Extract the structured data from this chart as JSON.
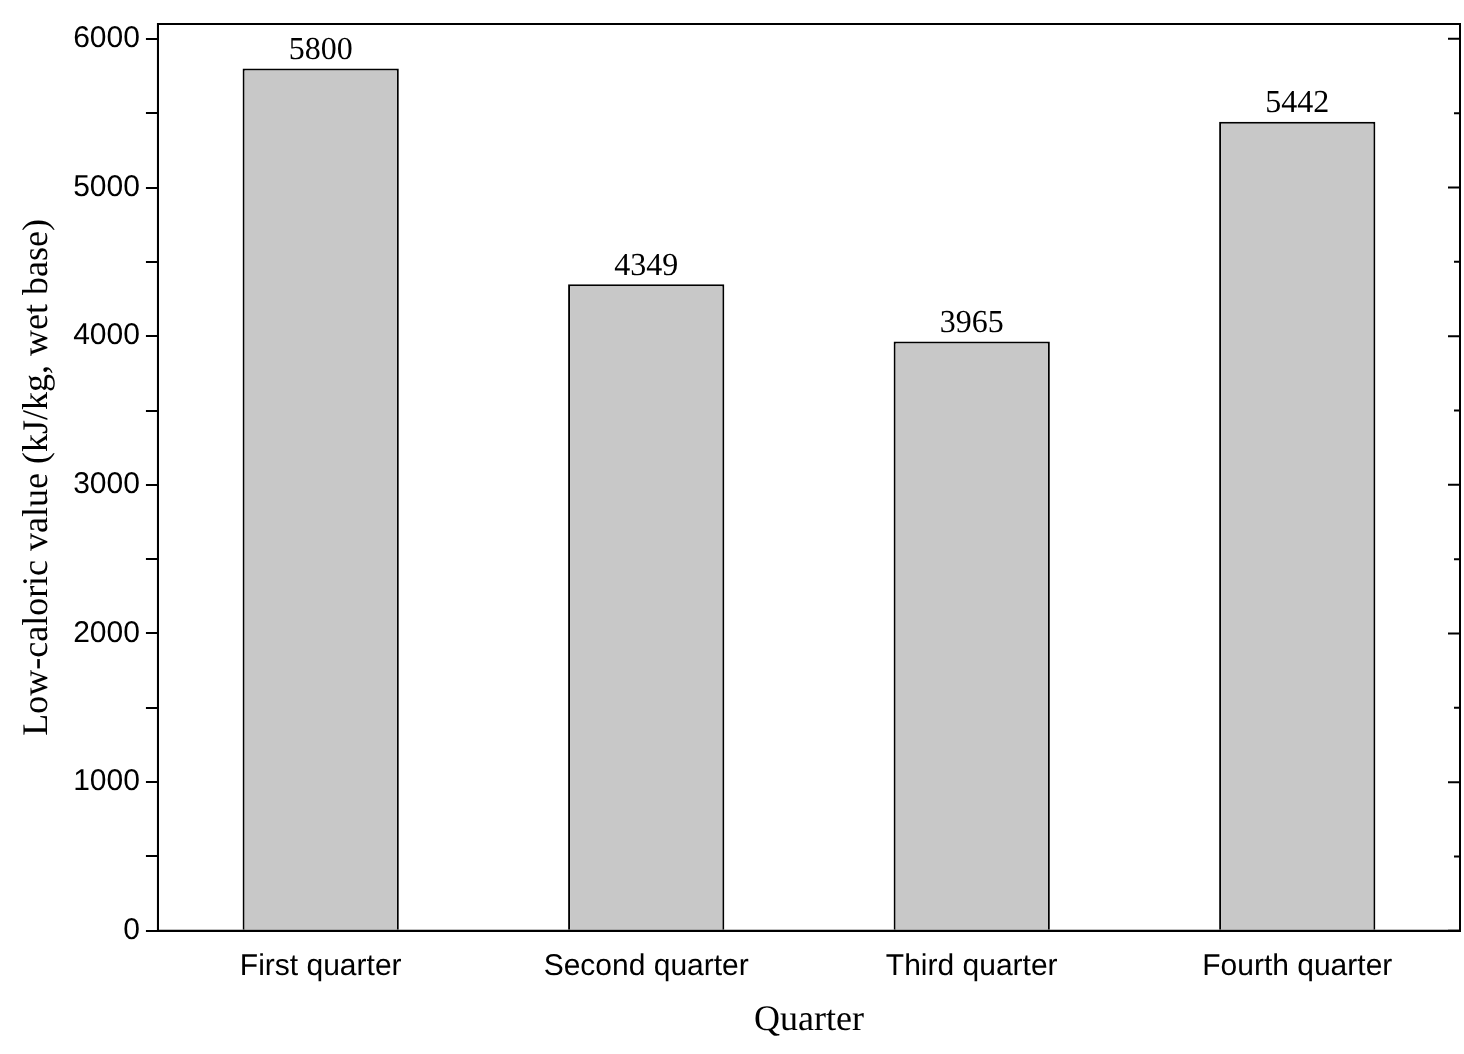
{
  "chart_data": {
    "type": "bar",
    "xlabel": "Quarter",
    "ylabel": "Low-caloric value (kJ/kg, wet base)",
    "categories": [
      "First quarter",
      "Second quarter",
      "Third quarter",
      "Fourth quarter"
    ],
    "values": [
      5800,
      4349,
      3965,
      5442
    ],
    "color": "#c8c8c8",
    "data_labels": true,
    "grid": false,
    "legend": false,
    "ylim": [
      0,
      6100
    ],
    "yticks": [
      0,
      {
        "value": 500,
        "label": null
      },
      1000,
      {
        "value": 1500,
        "label": null
      },
      2000,
      {
        "value": 2500,
        "label": null
      },
      3000,
      {
        "value": 3500,
        "label": null
      },
      4000,
      {
        "value": 4500,
        "label": null
      },
      5000,
      {
        "value": 5500,
        "label": null
      },
      6000
    ]
  }
}
